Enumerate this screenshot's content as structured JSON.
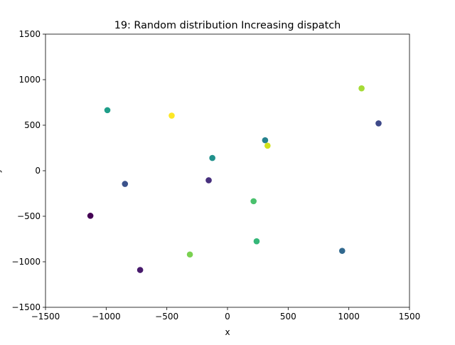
{
  "chart_data": {
    "type": "scatter",
    "title": "19: Random distribution Increasing dispatch",
    "xlabel": "x",
    "ylabel": "y",
    "xlim": [
      -1500,
      1500
    ],
    "ylim": [
      -1500,
      1500
    ],
    "xticks": [
      -1500,
      -1000,
      -500,
      0,
      500,
      1000,
      1500
    ],
    "yticks": [
      -1500,
      -1000,
      -500,
      0,
      500,
      1000,
      1500
    ],
    "xtick_labels": [
      "−1500",
      "−1000",
      "−500",
      "0",
      "500",
      "1000",
      "1500"
    ],
    "ytick_labels": [
      "−1500",
      "−1000",
      "−500",
      "0",
      "500",
      "1000",
      "1500"
    ],
    "grid": false,
    "points": [
      {
        "x": -1130,
        "y": -495,
        "color": "#440154"
      },
      {
        "x": -720,
        "y": -1090,
        "color": "#481a6c"
      },
      {
        "x": -155,
        "y": -105,
        "color": "#472f7d"
      },
      {
        "x": 1245,
        "y": 520,
        "color": "#3e4989"
      },
      {
        "x": -845,
        "y": -145,
        "color": "#3b528b"
      },
      {
        "x": 945,
        "y": -880,
        "color": "#31688e"
      },
      {
        "x": 310,
        "y": 335,
        "color": "#26828e"
      },
      {
        "x": -125,
        "y": 140,
        "color": "#21918c"
      },
      {
        "x": -990,
        "y": 665,
        "color": "#1f9e89"
      },
      {
        "x": 240,
        "y": -775,
        "color": "#35b779"
      },
      {
        "x": 215,
        "y": -335,
        "color": "#4ac16d"
      },
      {
        "x": -310,
        "y": -920,
        "color": "#7ad151"
      },
      {
        "x": 1105,
        "y": 905,
        "color": "#a5db36"
      },
      {
        "x": 330,
        "y": 275,
        "color": "#d2e21b"
      },
      {
        "x": -460,
        "y": 605,
        "color": "#fde725"
      }
    ]
  }
}
